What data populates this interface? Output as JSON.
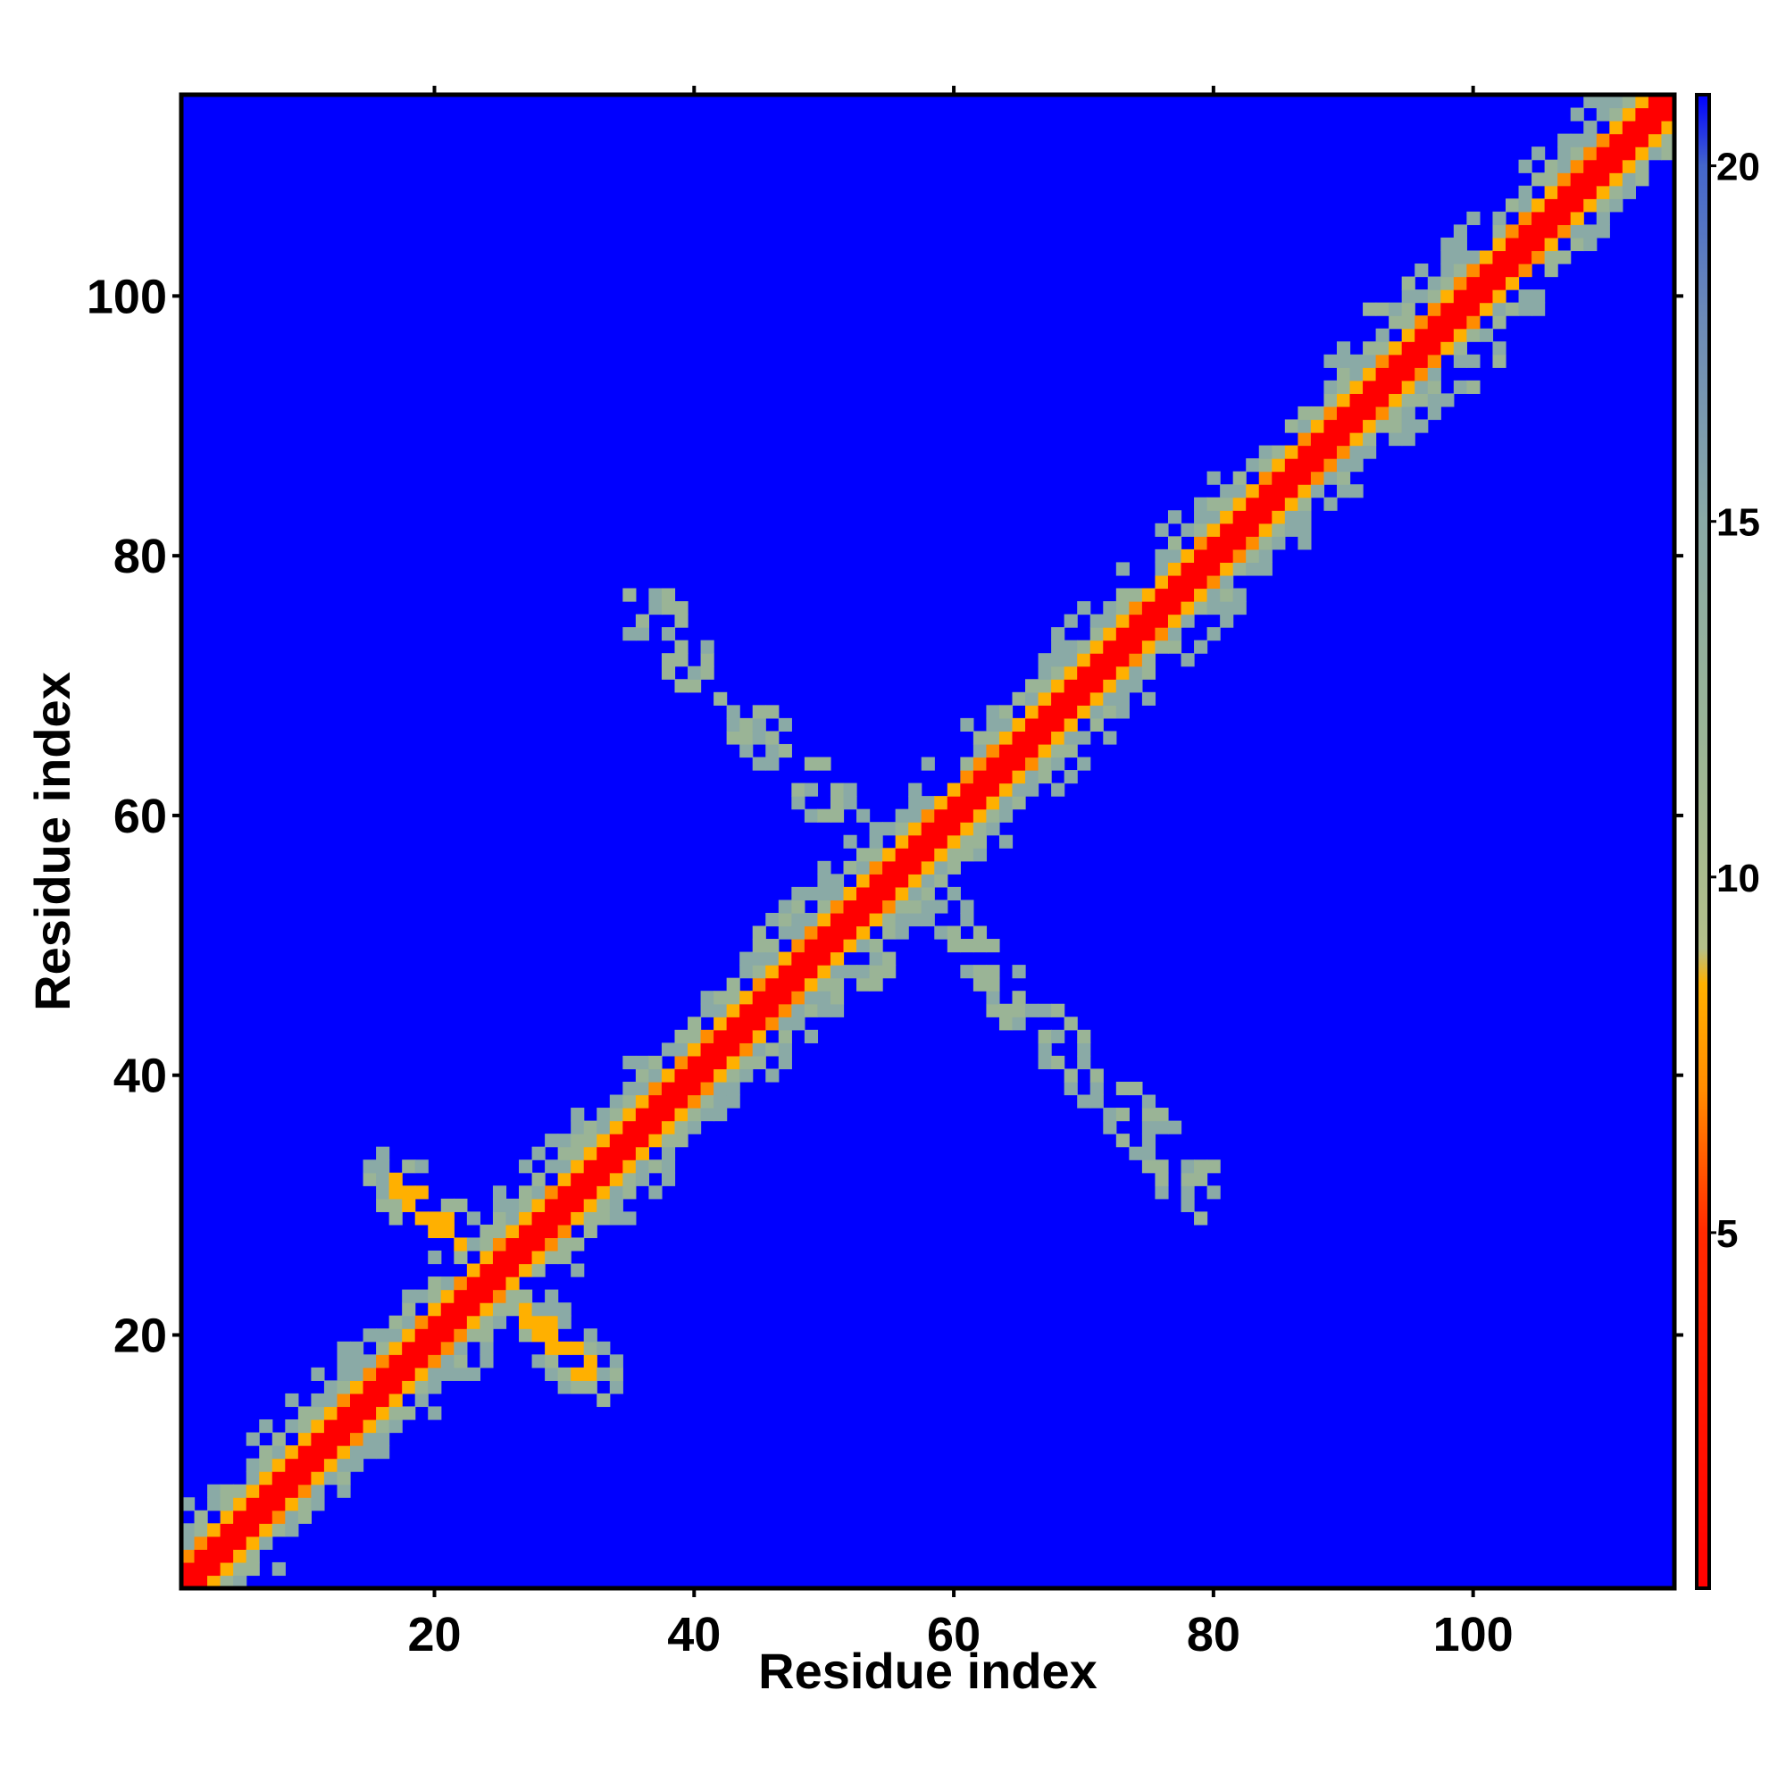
{
  "chart_data": {
    "type": "heatmap",
    "title": "",
    "xlabel": "Residue index",
    "ylabel": "Residue index",
    "xlim": [
      0.5,
      115.5
    ],
    "ylim": [
      0.5,
      115.5
    ],
    "n_residues": 115,
    "x_ticks": [
      20,
      40,
      60,
      80,
      100
    ],
    "y_ticks": [
      20,
      40,
      60,
      80,
      100
    ],
    "colorbar": {
      "range": [
        0,
        21
      ],
      "ticks": [
        5,
        10,
        15,
        20
      ],
      "colors": [
        {
          "value": 0,
          "color": "#ff0000"
        },
        {
          "value": 5,
          "color": "#ff2a00"
        },
        {
          "value": 7,
          "color": "#ff8c00"
        },
        {
          "value": 8.5,
          "color": "#ffb000"
        },
        {
          "value": 9,
          "color": "#b4c08a"
        },
        {
          "value": 12,
          "color": "#9ab496"
        },
        {
          "value": 15,
          "color": "#8aaaa6"
        },
        {
          "value": 18,
          "color": "#6a88b8"
        },
        {
          "value": 20,
          "color": "#4466cc"
        },
        {
          "value": 21,
          "color": "#0000ff"
        }
      ]
    },
    "background_color": "#0000ff",
    "features": [
      {
        "type": "diagonal",
        "core": 1.2,
        "orange": 2.0,
        "halo": 4.5
      },
      {
        "type": "antidiagonal_contact",
        "from": [
          17,
          32
        ],
        "to": [
          32,
          17
        ],
        "strength": "strong"
      },
      {
        "type": "antidiagonal_contact",
        "from": [
          36,
          76
        ],
        "to": [
          79,
          31
        ],
        "strength": "weak"
      },
      {
        "type": "contact_patch",
        "center": [
          50,
          50
        ],
        "note": "orange cluster near 45-55"
      },
      {
        "type": "contact_patch",
        "center": [
          97,
          97
        ],
        "note": "orange spots near 95-100"
      }
    ]
  }
}
